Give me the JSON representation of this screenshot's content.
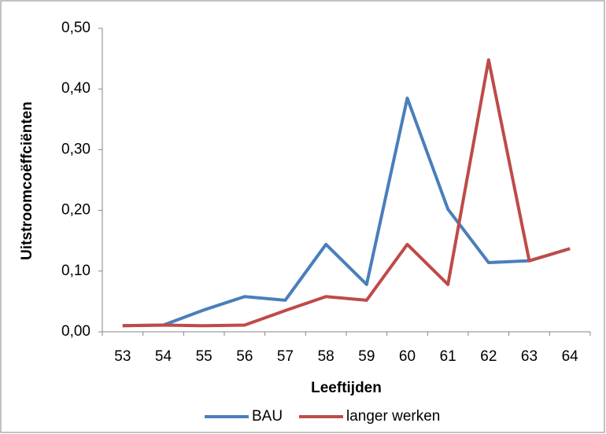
{
  "chart_data": {
    "type": "line",
    "x_label": "Leeftijden",
    "y_label": "Uitstroomcoëffciënten",
    "categories": [
      "53",
      "54",
      "55",
      "56",
      "57",
      "58",
      "59",
      "60",
      "61",
      "62",
      "63",
      "64"
    ],
    "series": [
      {
        "name": "BAU",
        "color": "#4a7ebb",
        "values": [
          0.01,
          0.011,
          0.036,
          0.058,
          0.052,
          0.144,
          0.078,
          0.385,
          0.202,
          0.114,
          0.117,
          0.137
        ]
      },
      {
        "name": "langer werken",
        "color": "#be4b48",
        "values": [
          0.01,
          0.011,
          0.01,
          0.011,
          0.035,
          0.058,
          0.052,
          0.144,
          0.078,
          0.448,
          0.117,
          0.137
        ]
      }
    ],
    "ylim": [
      0,
      0.5
    ],
    "yticks": [
      {
        "value": 0,
        "label": "0,00"
      },
      {
        "value": 0.1,
        "label": "0,10"
      },
      {
        "value": 0.2,
        "label": "0,20"
      },
      {
        "value": 0.3,
        "label": "0,30"
      },
      {
        "value": 0.4,
        "label": "0,40"
      },
      {
        "value": 0.5,
        "label": "0,50"
      }
    ],
    "grid": false,
    "legend": "bottom"
  }
}
